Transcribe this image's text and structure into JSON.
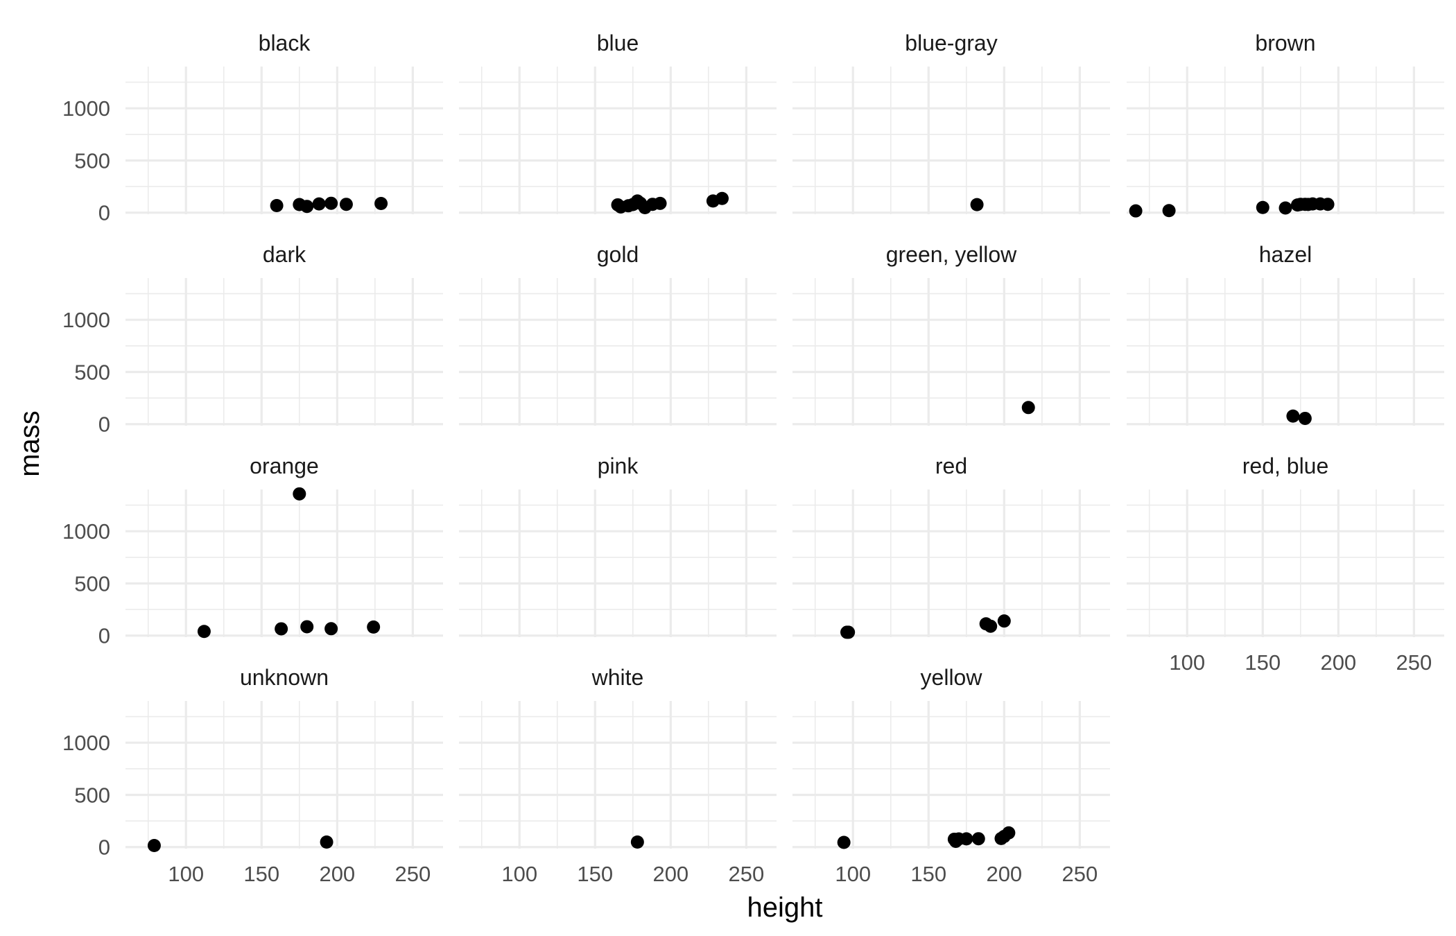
{
  "chart_data": {
    "type": "scatter",
    "xlabel": "height",
    "ylabel": "mass",
    "xlim": [
      60,
      270
    ],
    "ylim": [
      -15,
      1400
    ],
    "x_ticks": [
      100,
      150,
      200,
      250
    ],
    "y_ticks": [
      0,
      500,
      1000
    ],
    "grid": true,
    "point_color": "#000000",
    "grid_color": "#ebebeb",
    "panels": [
      {
        "label": "black",
        "points": [
          [
            160,
            68
          ],
          [
            175,
            78
          ],
          [
            180,
            60
          ],
          [
            188,
            84
          ],
          [
            196,
            90
          ],
          [
            206,
            80
          ],
          [
            229,
            88
          ]
        ]
      },
      {
        "label": "blue",
        "points": [
          [
            165,
            75
          ],
          [
            167,
            55
          ],
          [
            172,
            66
          ],
          [
            175,
            78
          ],
          [
            178,
            112
          ],
          [
            180,
            90
          ],
          [
            183,
            48
          ],
          [
            188,
            80
          ],
          [
            193,
            89
          ],
          [
            228,
            112
          ],
          [
            234,
            136
          ]
        ]
      },
      {
        "label": "blue-gray",
        "points": [
          [
            182,
            77
          ]
        ]
      },
      {
        "label": "brown",
        "points": [
          [
            66,
            17
          ],
          [
            88,
            20
          ],
          [
            150,
            49.9
          ],
          [
            165,
            45
          ],
          [
            173,
            74
          ],
          [
            175,
            80
          ],
          [
            178,
            80
          ],
          [
            180,
            79
          ],
          [
            183,
            84
          ],
          [
            188,
            84
          ],
          [
            193,
            80
          ]
        ]
      },
      {
        "label": "dark",
        "points": []
      },
      {
        "label": "gold",
        "points": []
      },
      {
        "label": "green, yellow",
        "points": [
          [
            216,
            159
          ]
        ]
      },
      {
        "label": "hazel",
        "points": [
          [
            170,
            77
          ],
          [
            178,
            55
          ]
        ]
      },
      {
        "label": "orange",
        "points": [
          [
            112,
            40
          ],
          [
            163,
            65
          ],
          [
            175,
            1358
          ],
          [
            180,
            85
          ],
          [
            196,
            66
          ],
          [
            224,
            82
          ]
        ]
      },
      {
        "label": "pink",
        "points": []
      },
      {
        "label": "red",
        "points": [
          [
            96,
            32
          ],
          [
            97,
            32
          ],
          [
            188,
            113
          ],
          [
            191,
            90
          ],
          [
            200,
            140
          ]
        ]
      },
      {
        "label": "red, blue",
        "points": []
      },
      {
        "label": "unknown",
        "points": [
          [
            79,
            15
          ],
          [
            193,
            48
          ]
        ]
      },
      {
        "label": "white",
        "points": [
          [
            178,
            48
          ]
        ]
      },
      {
        "label": "yellow",
        "points": [
          [
            94,
            45
          ],
          [
            167,
            75
          ],
          [
            168,
            55
          ],
          [
            170,
            78
          ],
          [
            175,
            79
          ],
          [
            183,
            80
          ],
          [
            198,
            82
          ],
          [
            200,
            102
          ],
          [
            203,
            136
          ]
        ]
      }
    ]
  }
}
